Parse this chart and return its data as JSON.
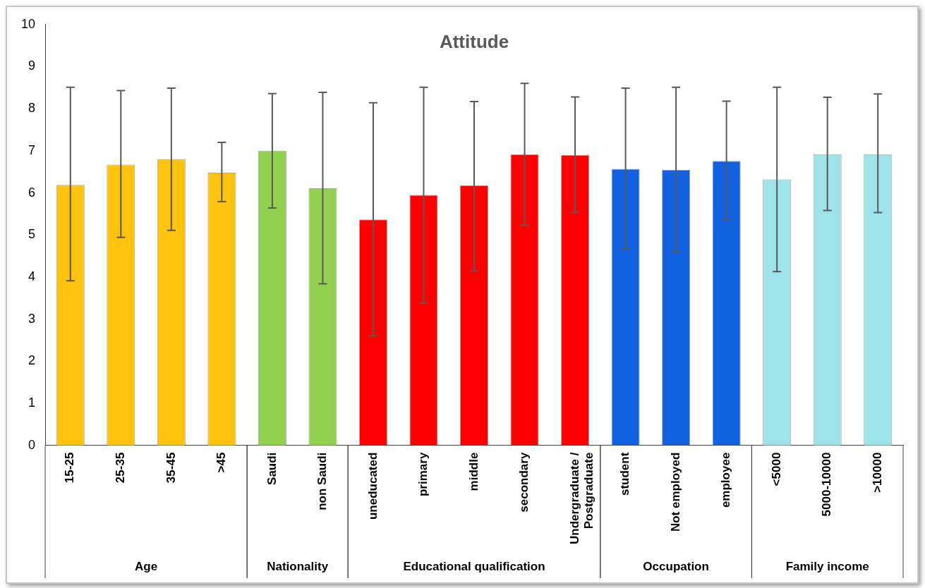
{
  "chart_data": {
    "type": "bar",
    "title": "Attitude",
    "categories": [
      "15-25",
      "25-35",
      "35-45",
      ">45",
      "Saudi",
      "non Saudi",
      "uneducated",
      "primary",
      "middle",
      "secondary",
      "Undergraduate / Postgraduate",
      "student",
      "Not employed",
      "employee",
      "<5000",
      "5000-10000",
      ">10000"
    ],
    "values": [
      6.19,
      6.67,
      6.8,
      6.48,
      7.0,
      6.11,
      5.37,
      5.95,
      6.18,
      6.92,
      6.9,
      6.57,
      6.55,
      6.76,
      6.32,
      6.92,
      6.92
    ],
    "errors": [
      [
        3.91,
        8.51
      ],
      [
        4.94,
        8.43
      ],
      [
        5.11,
        8.49
      ],
      [
        5.79,
        7.2
      ],
      [
        5.64,
        8.36
      ],
      [
        3.84,
        8.39
      ],
      [
        2.6,
        8.14
      ],
      [
        3.38,
        8.51
      ],
      [
        4.15,
        8.17
      ],
      [
        5.23,
        8.6
      ],
      [
        5.53,
        8.28
      ],
      [
        4.67,
        8.49
      ],
      [
        4.59,
        8.51
      ],
      [
        5.36,
        8.18
      ],
      [
        4.13,
        8.51
      ],
      [
        5.58,
        8.27
      ],
      [
        5.53,
        8.35
      ]
    ],
    "colors": [
      "#ffc20e",
      "#ffc20e",
      "#ffc20e",
      "#ffc20e",
      "#92d050",
      "#92d050",
      "#ff0000",
      "#ff0000",
      "#ff0000",
      "#ff0000",
      "#ff0000",
      "#1060e0",
      "#1060e0",
      "#1060e0",
      "#9ee3ea",
      "#9ee3ea",
      "#9ee3ea"
    ],
    "ylim": [
      0,
      10
    ],
    "yticks": [
      0,
      1,
      2,
      3,
      4,
      5,
      6,
      7,
      8,
      9,
      10
    ],
    "grid": false,
    "legend": false,
    "annotations": [
      "Age",
      "Nationality",
      "Educational qualification",
      "Occupation",
      "Family income"
    ]
  }
}
